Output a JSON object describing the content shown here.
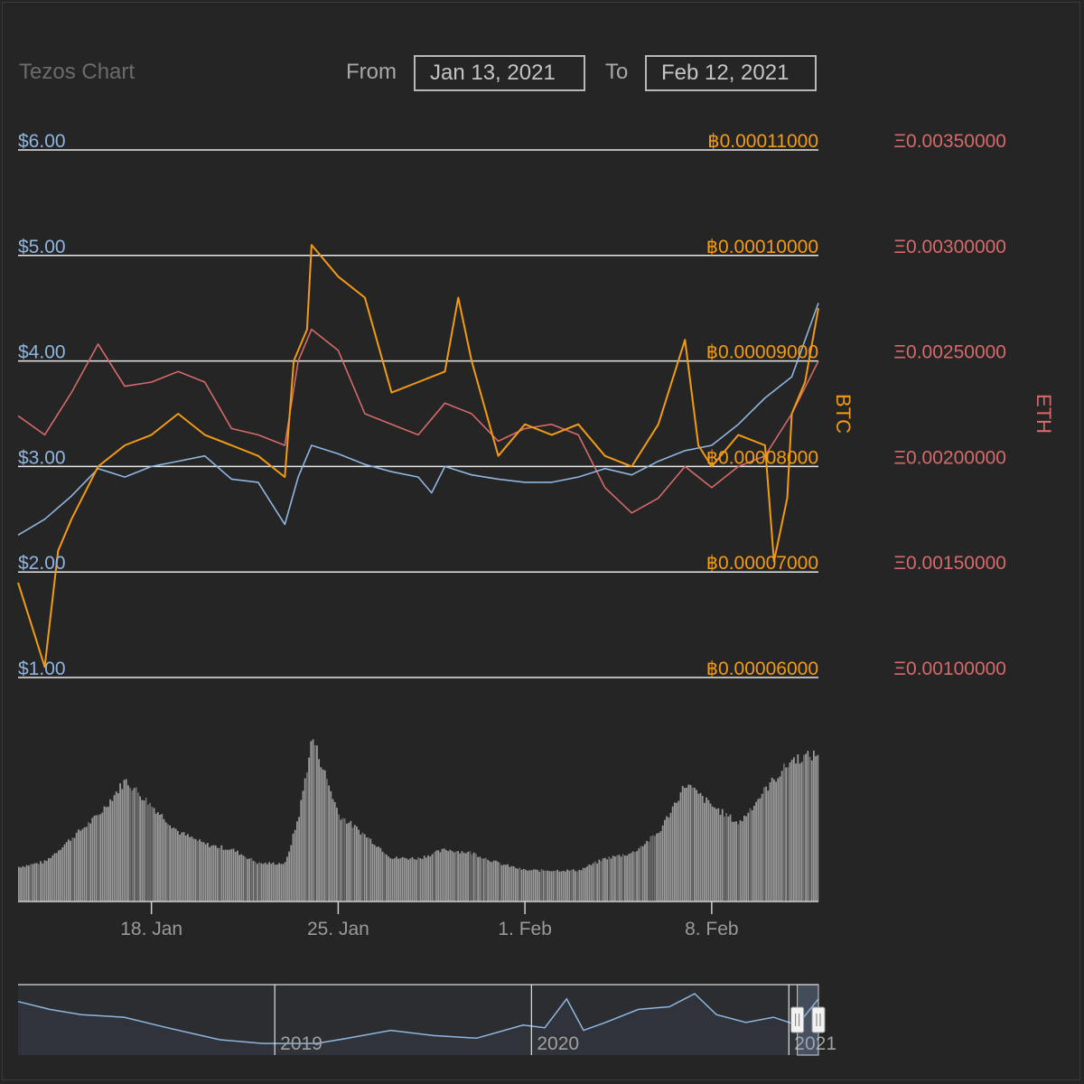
{
  "title": "Tezos Chart",
  "range_selector": {
    "from_label": "From",
    "from_value": "Jan 13, 2021",
    "to_label": "To",
    "to_value": "Feb 12, 2021"
  },
  "colors": {
    "background": "#252525",
    "usd": "#8fb6e0",
    "btc": "#f29b13",
    "eth": "#d56a6a",
    "volume": "#9a9a9a",
    "gridline": "#e8e8e8",
    "axis_text": "#9a9a9a"
  },
  "chart_data": {
    "type": "line",
    "x_range": [
      "2021-01-13",
      "2021-02-12"
    ],
    "series": [
      {
        "axis": "usd",
        "points": [
          [
            "2021-01-13",
            2.35
          ],
          [
            "2021-01-14",
            2.5
          ],
          [
            "2021-01-15",
            2.72
          ],
          [
            "2021-01-16",
            2.98
          ],
          [
            "2021-01-17",
            2.9
          ],
          [
            "2021-01-18",
            3.0
          ],
          [
            "2021-01-19",
            3.05
          ],
          [
            "2021-01-20",
            3.1
          ],
          [
            "2021-01-21",
            2.88
          ],
          [
            "2021-01-22",
            2.85
          ],
          [
            "2021-01-23",
            2.45
          ],
          [
            "2021-01-23T12",
            2.9
          ],
          [
            "2021-01-24",
            3.2
          ],
          [
            "2021-01-25",
            3.12
          ],
          [
            "2021-01-26",
            3.02
          ],
          [
            "2021-01-27",
            2.95
          ],
          [
            "2021-01-28",
            2.9
          ],
          [
            "2021-01-28T12",
            2.75
          ],
          [
            "2021-01-29",
            3.0
          ],
          [
            "2021-01-30",
            2.92
          ],
          [
            "2021-01-31",
            2.88
          ],
          [
            "2021-02-01",
            2.85
          ],
          [
            "2021-02-02",
            2.85
          ],
          [
            "2021-02-03",
            2.9
          ],
          [
            "2021-02-04",
            2.98
          ],
          [
            "2021-02-05",
            2.92
          ],
          [
            "2021-02-06",
            3.05
          ],
          [
            "2021-02-07",
            3.15
          ],
          [
            "2021-02-08",
            3.2
          ],
          [
            "2021-02-09",
            3.4
          ],
          [
            "2021-02-10",
            3.65
          ],
          [
            "2021-02-11",
            3.85
          ],
          [
            "2021-02-12",
            4.55
          ]
        ]
      },
      {
        "axis": "btc",
        "points": [
          [
            "2021-01-13",
            6.9e-05
          ],
          [
            "2021-01-13T12",
            6.5e-05
          ],
          [
            "2021-01-14",
            6.1e-05
          ],
          [
            "2021-01-14T12",
            7.2e-05
          ],
          [
            "2021-01-15",
            7.5e-05
          ],
          [
            "2021-01-16",
            8e-05
          ],
          [
            "2021-01-17",
            8.2e-05
          ],
          [
            "2021-01-18",
            8.3e-05
          ],
          [
            "2021-01-19",
            8.5e-05
          ],
          [
            "2021-01-20",
            8.3e-05
          ],
          [
            "2021-01-21",
            8.2e-05
          ],
          [
            "2021-01-22",
            8.1e-05
          ],
          [
            "2021-01-23",
            7.9e-05
          ],
          [
            "2021-01-23T08",
            9e-05
          ],
          [
            "2021-01-23T20",
            9.3e-05
          ],
          [
            "2021-01-24",
            0.000101
          ],
          [
            "2021-01-25",
            9.8e-05
          ],
          [
            "2021-01-26",
            9.6e-05
          ],
          [
            "2021-01-27",
            8.7e-05
          ],
          [
            "2021-01-28",
            8.8e-05
          ],
          [
            "2021-01-29",
            8.9e-05
          ],
          [
            "2021-01-29T12",
            9.6e-05
          ],
          [
            "2021-01-30",
            9e-05
          ],
          [
            "2021-01-31",
            8.1e-05
          ],
          [
            "2021-02-01",
            8.4e-05
          ],
          [
            "2021-02-02",
            8.3e-05
          ],
          [
            "2021-02-03",
            8.4e-05
          ],
          [
            "2021-02-04",
            8.1e-05
          ],
          [
            "2021-02-05",
            8e-05
          ],
          [
            "2021-02-06",
            8.4e-05
          ],
          [
            "2021-02-07",
            9.2e-05
          ],
          [
            "2021-02-07T12",
            8.2e-05
          ],
          [
            "2021-02-08",
            8e-05
          ],
          [
            "2021-02-09",
            8.3e-05
          ],
          [
            "2021-02-10",
            8.2e-05
          ],
          [
            "2021-02-10T08",
            7.1e-05
          ],
          [
            "2021-02-10T20",
            7.7e-05
          ],
          [
            "2021-02-11",
            8.5e-05
          ],
          [
            "2021-02-11T12",
            8.8e-05
          ],
          [
            "2021-02-12",
            9.5e-05
          ]
        ]
      },
      {
        "axis": "eth",
        "points": [
          [
            "2021-01-13",
            0.00224
          ],
          [
            "2021-01-14",
            0.00215
          ],
          [
            "2021-01-15",
            0.00235
          ],
          [
            "2021-01-16",
            0.00258
          ],
          [
            "2021-01-17",
            0.00238
          ],
          [
            "2021-01-18",
            0.0024
          ],
          [
            "2021-01-19",
            0.00245
          ],
          [
            "2021-01-20",
            0.0024
          ],
          [
            "2021-01-21",
            0.00218
          ],
          [
            "2021-01-22",
            0.00215
          ],
          [
            "2021-01-23",
            0.0021
          ],
          [
            "2021-01-23T12",
            0.0025
          ],
          [
            "2021-01-24",
            0.00265
          ],
          [
            "2021-01-25",
            0.00255
          ],
          [
            "2021-01-26",
            0.00225
          ],
          [
            "2021-01-27",
            0.0022
          ],
          [
            "2021-01-28",
            0.00215
          ],
          [
            "2021-01-29",
            0.0023
          ],
          [
            "2021-01-30",
            0.00225
          ],
          [
            "2021-01-31",
            0.00212
          ],
          [
            "2021-02-01",
            0.00218
          ],
          [
            "2021-02-02",
            0.0022
          ],
          [
            "2021-02-03",
            0.00215
          ],
          [
            "2021-02-04",
            0.0019
          ],
          [
            "2021-02-05",
            0.00178
          ],
          [
            "2021-02-06",
            0.00185
          ],
          [
            "2021-02-07",
            0.002
          ],
          [
            "2021-02-08",
            0.0019
          ],
          [
            "2021-02-09",
            0.002
          ],
          [
            "2021-02-10",
            0.00205
          ],
          [
            "2021-02-11",
            0.00225
          ],
          [
            "2021-02-12",
            0.0025
          ]
        ]
      }
    ],
    "volume": {
      "points": [
        [
          "2021-01-13",
          0.2
        ],
        [
          "2021-01-14",
          0.23
        ],
        [
          "2021-01-15",
          0.37
        ],
        [
          "2021-01-16",
          0.5
        ],
        [
          "2021-01-17",
          0.7
        ],
        [
          "2021-01-18",
          0.55
        ],
        [
          "2021-01-19",
          0.4
        ],
        [
          "2021-01-20",
          0.33
        ],
        [
          "2021-01-21",
          0.3
        ],
        [
          "2021-01-22",
          0.22
        ],
        [
          "2021-01-23",
          0.22
        ],
        [
          "2021-01-23T12",
          0.5
        ],
        [
          "2021-01-24",
          0.95
        ],
        [
          "2021-01-25",
          0.5
        ],
        [
          "2021-01-26",
          0.38
        ],
        [
          "2021-01-27",
          0.25
        ],
        [
          "2021-01-28",
          0.25
        ],
        [
          "2021-01-29",
          0.3
        ],
        [
          "2021-01-30",
          0.28
        ],
        [
          "2021-01-31",
          0.22
        ],
        [
          "2021-02-01",
          0.18
        ],
        [
          "2021-02-02",
          0.18
        ],
        [
          "2021-02-03",
          0.18
        ],
        [
          "2021-02-04",
          0.25
        ],
        [
          "2021-02-05",
          0.28
        ],
        [
          "2021-02-06",
          0.4
        ],
        [
          "2021-02-07",
          0.68
        ],
        [
          "2021-02-08",
          0.55
        ],
        [
          "2021-02-09",
          0.45
        ],
        [
          "2021-02-10",
          0.65
        ],
        [
          "2021-02-11",
          0.82
        ],
        [
          "2021-02-12",
          0.85
        ]
      ]
    },
    "axes": {
      "usd": {
        "ticks": [
          1,
          2,
          3,
          4,
          5,
          6
        ],
        "labels": [
          "$1.00",
          "$2.00",
          "$3.00",
          "$4.00",
          "$5.00",
          "$6.00"
        ]
      },
      "btc": {
        "title": "BTC",
        "ticks": [
          6e-05,
          7e-05,
          8e-05,
          9e-05,
          0.0001,
          0.00011
        ],
        "labels": [
          "฿0.00006000",
          "฿0.00007000",
          "฿0.00008000",
          "฿0.00009000",
          "฿0.00010000",
          "฿0.00011000"
        ]
      },
      "eth": {
        "title": "ETH",
        "ticks": [
          0.001,
          0.0015,
          0.002,
          0.0025,
          0.003,
          0.0035
        ],
        "labels": [
          "Ξ0.00100000",
          "Ξ0.00150000",
          "Ξ0.00200000",
          "Ξ0.00250000",
          "Ξ0.00300000",
          "Ξ0.00350000"
        ]
      },
      "x": {
        "ticks": [
          {
            "date": "2021-01-18",
            "label": "18. Jan"
          },
          {
            "date": "2021-01-25",
            "label": "25. Jan"
          },
          {
            "date": "2021-02-01",
            "label": "1. Feb"
          },
          {
            "date": "2021-02-08",
            "label": "8. Feb"
          }
        ]
      }
    },
    "navigator": {
      "x_range": [
        "2018-01-01",
        "2021-02-12"
      ],
      "selected_range": [
        "2021-01-13",
        "2021-02-12"
      ],
      "year_ticks": [
        {
          "date": "2019-01-01",
          "label": "2019"
        },
        {
          "date": "2020-01-01",
          "label": "2020"
        },
        {
          "date": "2021-01-01",
          "label": "2021"
        }
      ],
      "points": [
        [
          "2018-01-01",
          0.85
        ],
        [
          "2018-02-15",
          0.7
        ],
        [
          "2018-04-01",
          0.6
        ],
        [
          "2018-06-01",
          0.55
        ],
        [
          "2018-08-01",
          0.35
        ],
        [
          "2018-10-15",
          0.12
        ],
        [
          "2018-12-15",
          0.05
        ],
        [
          "2019-03-01",
          0.05
        ],
        [
          "2019-04-15",
          0.15
        ],
        [
          "2019-06-15",
          0.3
        ],
        [
          "2019-08-15",
          0.2
        ],
        [
          "2019-10-15",
          0.15
        ],
        [
          "2019-12-20",
          0.4
        ],
        [
          "2020-01-20",
          0.35
        ],
        [
          "2020-02-20",
          0.9
        ],
        [
          "2020-03-15",
          0.3
        ],
        [
          "2020-04-15",
          0.45
        ],
        [
          "2020-06-01",
          0.7
        ],
        [
          "2020-07-15",
          0.75
        ],
        [
          "2020-08-20",
          1.0
        ],
        [
          "2020-09-20",
          0.6
        ],
        [
          "2020-11-01",
          0.45
        ],
        [
          "2020-12-10",
          0.55
        ],
        [
          "2021-01-13",
          0.4
        ],
        [
          "2021-02-12",
          0.9
        ]
      ]
    }
  }
}
